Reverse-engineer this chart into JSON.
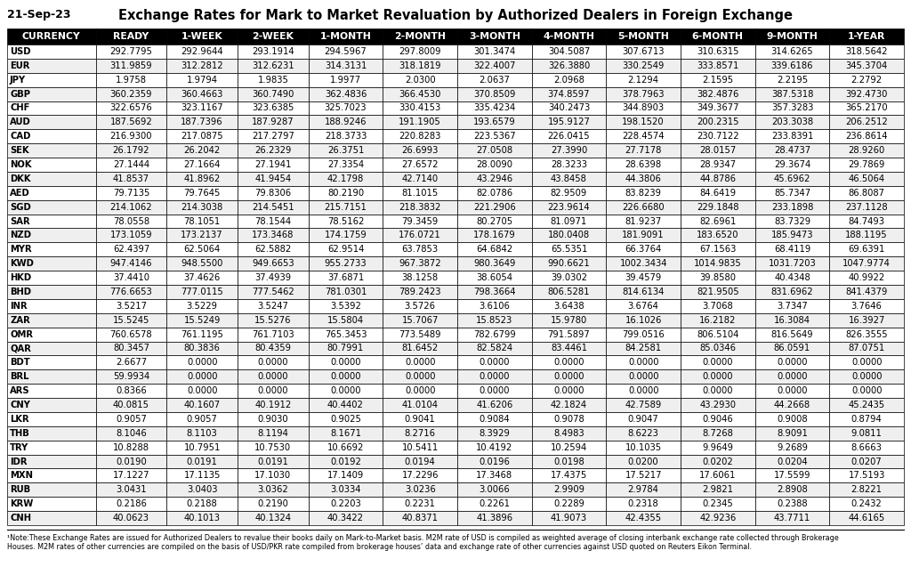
{
  "title": "Exchange Rates for Mark to Market Revaluation by Authorized Dealers in Foreign Exchange",
  "date": "21-Sep-23",
  "columns": [
    "CURRENCY",
    "READY",
    "1-WEEK",
    "2-WEEK",
    "1-MONTH",
    "2-MONTH",
    "3-MONTH",
    "4-MONTH",
    "5-MONTH",
    "6-MONTH",
    "9-MONTH",
    "1-YEAR"
  ],
  "rows": [
    [
      "USD",
      "292.7795",
      "292.9644",
      "293.1914",
      "294.5967",
      "297.8009",
      "301.3474",
      "304.5087",
      "307.6713",
      "310.6315",
      "314.6265",
      "318.5642"
    ],
    [
      "EUR",
      "311.9859",
      "312.2812",
      "312.6231",
      "314.3131",
      "318.1819",
      "322.4007",
      "326.3880",
      "330.2549",
      "333.8571",
      "339.6186",
      "345.3704"
    ],
    [
      "JPY",
      "1.9758",
      "1.9794",
      "1.9835",
      "1.9977",
      "2.0300",
      "2.0637",
      "2.0968",
      "2.1294",
      "2.1595",
      "2.2195",
      "2.2792"
    ],
    [
      "GBP",
      "360.2359",
      "360.4663",
      "360.7490",
      "362.4836",
      "366.4530",
      "370.8509",
      "374.8597",
      "378.7963",
      "382.4876",
      "387.5318",
      "392.4730"
    ],
    [
      "CHF",
      "322.6576",
      "323.1167",
      "323.6385",
      "325.7023",
      "330.4153",
      "335.4234",
      "340.2473",
      "344.8903",
      "349.3677",
      "357.3283",
      "365.2170"
    ],
    [
      "AUD",
      "187.5692",
      "187.7396",
      "187.9287",
      "188.9246",
      "191.1905",
      "193.6579",
      "195.9127",
      "198.1520",
      "200.2315",
      "203.3038",
      "206.2512"
    ],
    [
      "CAD",
      "216.9300",
      "217.0875",
      "217.2797",
      "218.3733",
      "220.8283",
      "223.5367",
      "226.0415",
      "228.4574",
      "230.7122",
      "233.8391",
      "236.8614"
    ],
    [
      "SEK",
      "26.1792",
      "26.2042",
      "26.2329",
      "26.3751",
      "26.6993",
      "27.0508",
      "27.3990",
      "27.7178",
      "28.0157",
      "28.4737",
      "28.9260"
    ],
    [
      "NOK",
      "27.1444",
      "27.1664",
      "27.1941",
      "27.3354",
      "27.6572",
      "28.0090",
      "28.3233",
      "28.6398",
      "28.9347",
      "29.3674",
      "29.7869"
    ],
    [
      "DKK",
      "41.8537",
      "41.8962",
      "41.9454",
      "42.1798",
      "42.7140",
      "43.2946",
      "43.8458",
      "44.3806",
      "44.8786",
      "45.6962",
      "46.5064"
    ],
    [
      "AED",
      "79.7135",
      "79.7645",
      "79.8306",
      "80.2190",
      "81.1015",
      "82.0786",
      "82.9509",
      "83.8239",
      "84.6419",
      "85.7347",
      "86.8087"
    ],
    [
      "SGD",
      "214.1062",
      "214.3038",
      "214.5451",
      "215.7151",
      "218.3832",
      "221.2906",
      "223.9614",
      "226.6680",
      "229.1848",
      "233.1898",
      "237.1128"
    ],
    [
      "SAR",
      "78.0558",
      "78.1051",
      "78.1544",
      "78.5162",
      "79.3459",
      "80.2705",
      "81.0971",
      "81.9237",
      "82.6961",
      "83.7329",
      "84.7493"
    ],
    [
      "NZD",
      "173.1059",
      "173.2137",
      "173.3468",
      "174.1759",
      "176.0721",
      "178.1679",
      "180.0408",
      "181.9091",
      "183.6520",
      "185.9473",
      "188.1195"
    ],
    [
      "MYR",
      "62.4397",
      "62.5064",
      "62.5882",
      "62.9514",
      "63.7853",
      "64.6842",
      "65.5351",
      "66.3764",
      "67.1563",
      "68.4119",
      "69.6391"
    ],
    [
      "KWD",
      "947.4146",
      "948.5500",
      "949.6653",
      "955.2733",
      "967.3872",
      "980.3649",
      "990.6621",
      "1002.3434",
      "1014.9835",
      "1031.7203",
      "1047.9774"
    ],
    [
      "HKD",
      "37.4410",
      "37.4626",
      "37.4939",
      "37.6871",
      "38.1258",
      "38.6054",
      "39.0302",
      "39.4579",
      "39.8580",
      "40.4348",
      "40.9922"
    ],
    [
      "BHD",
      "776.6653",
      "777.0115",
      "777.5462",
      "781.0301",
      "789.2423",
      "798.3664",
      "806.5281",
      "814.6134",
      "821.9505",
      "831.6962",
      "841.4379"
    ],
    [
      "INR",
      "3.5217",
      "3.5229",
      "3.5247",
      "3.5392",
      "3.5726",
      "3.6106",
      "3.6438",
      "3.6764",
      "3.7068",
      "3.7347",
      "3.7646"
    ],
    [
      "ZAR",
      "15.5245",
      "15.5249",
      "15.5276",
      "15.5804",
      "15.7067",
      "15.8523",
      "15.9780",
      "16.1026",
      "16.2182",
      "16.3084",
      "16.3927"
    ],
    [
      "OMR",
      "760.6578",
      "761.1195",
      "761.7103",
      "765.3453",
      "773.5489",
      "782.6799",
      "791.5897",
      "799.0516",
      "806.5104",
      "816.5649",
      "826.3555"
    ],
    [
      "QAR",
      "80.3457",
      "80.3836",
      "80.4359",
      "80.7991",
      "81.6452",
      "82.5824",
      "83.4461",
      "84.2581",
      "85.0346",
      "86.0591",
      "87.0751"
    ],
    [
      "BDT",
      "2.6677",
      "0.0000",
      "0.0000",
      "0.0000",
      "0.0000",
      "0.0000",
      "0.0000",
      "0.0000",
      "0.0000",
      "0.0000",
      "0.0000"
    ],
    [
      "BRL",
      "59.9934",
      "0.0000",
      "0.0000",
      "0.0000",
      "0.0000",
      "0.0000",
      "0.0000",
      "0.0000",
      "0.0000",
      "0.0000",
      "0.0000"
    ],
    [
      "ARS",
      "0.8366",
      "0.0000",
      "0.0000",
      "0.0000",
      "0.0000",
      "0.0000",
      "0.0000",
      "0.0000",
      "0.0000",
      "0.0000",
      "0.0000"
    ],
    [
      "CNY",
      "40.0815",
      "40.1607",
      "40.1912",
      "40.4402",
      "41.0104",
      "41.6206",
      "42.1824",
      "42.7589",
      "43.2930",
      "44.2668",
      "45.2435"
    ],
    [
      "LKR",
      "0.9057",
      "0.9057",
      "0.9030",
      "0.9025",
      "0.9041",
      "0.9084",
      "0.9078",
      "0.9047",
      "0.9046",
      "0.9008",
      "0.8794"
    ],
    [
      "THB",
      "8.1046",
      "8.1103",
      "8.1194",
      "8.1671",
      "8.2716",
      "8.3929",
      "8.4983",
      "8.6223",
      "8.7268",
      "8.9091",
      "9.0811"
    ],
    [
      "TRY",
      "10.8288",
      "10.7951",
      "10.7530",
      "10.6692",
      "10.5411",
      "10.4192",
      "10.2594",
      "10.1035",
      "9.9649",
      "9.2689",
      "8.6663"
    ],
    [
      "IDR",
      "0.0190",
      "0.0191",
      "0.0191",
      "0.0192",
      "0.0194",
      "0.0196",
      "0.0198",
      "0.0200",
      "0.0202",
      "0.0204",
      "0.0207"
    ],
    [
      "MXN",
      "17.1227",
      "17.1135",
      "17.1030",
      "17.1409",
      "17.2296",
      "17.3468",
      "17.4375",
      "17.5217",
      "17.6061",
      "17.5599",
      "17.5193"
    ],
    [
      "RUB",
      "3.0431",
      "3.0403",
      "3.0362",
      "3.0334",
      "3.0236",
      "3.0066",
      "2.9909",
      "2.9784",
      "2.9821",
      "2.8908",
      "2.8221"
    ],
    [
      "KRW",
      "0.2186",
      "0.2188",
      "0.2190",
      "0.2203",
      "0.2231",
      "0.2261",
      "0.2289",
      "0.2318",
      "0.2345",
      "0.2388",
      "0.2432"
    ],
    [
      "CNH",
      "40.0623",
      "40.1013",
      "40.1324",
      "40.3422",
      "40.8371",
      "41.3896",
      "41.9073",
      "42.4355",
      "42.9236",
      "43.7711",
      "44.6165"
    ]
  ],
  "footnote_line1": "¹Note:These Exchange Rates are issued for Authorized Dealers to revalue their books daily on Mark-to-Market basis. M2M rate of USD is compiled as weighted average of closing interbank exchange rate collected through Brokerage",
  "footnote_line2": "Houses. M2M rates of other currencies are compiled on the basis of USD/PKR rate compiled from brokerage houses’ data and exchange rate of other currencies against USD quoted on Reuters Eikon Terminal.",
  "header_bg": "#000000",
  "header_fg": "#ffffff",
  "row_bg_even": "#ffffff",
  "row_bg_odd": "#efefef",
  "border_color": "#000000",
  "title_fontsize": 10.5,
  "date_fontsize": 9,
  "header_fontsize": 7.8,
  "cell_fontsize": 7.2,
  "footnote_fontsize": 5.8
}
